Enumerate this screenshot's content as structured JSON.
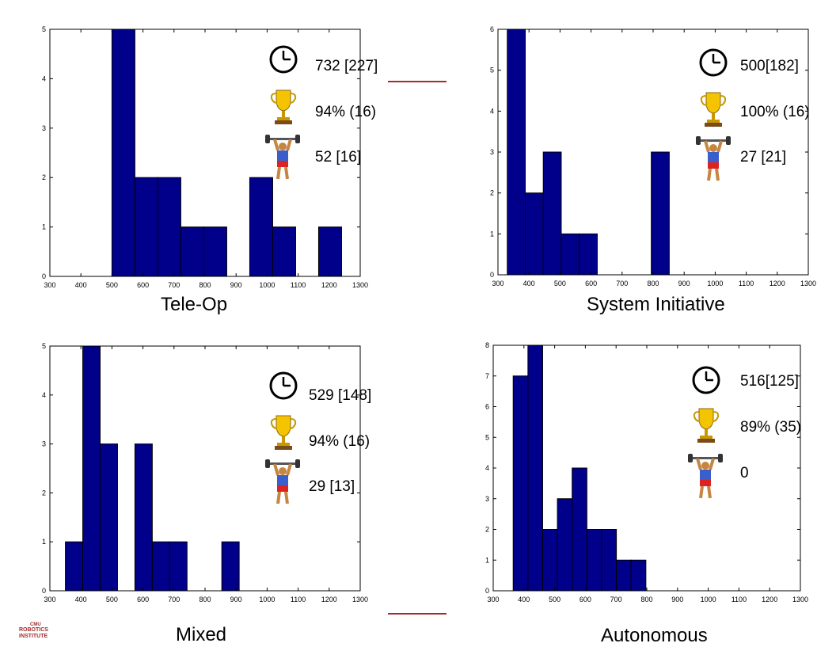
{
  "charts": [
    {
      "label": "Tele-Op",
      "stats": {
        "time": "732 [227]",
        "success": "94% (16)",
        "effort": "52 [16]"
      },
      "chart_data": {
        "type": "bar",
        "bin_width": 74,
        "bin_starts": [
          500,
          574,
          648,
          722,
          796,
          944,
          1018,
          1166
        ],
        "values": [
          5,
          2,
          2,
          1,
          1,
          2,
          1,
          1
        ],
        "xlim": [
          300,
          1300
        ],
        "xticks": [
          300,
          400,
          500,
          600,
          700,
          800,
          900,
          1000,
          1100,
          1200,
          1300
        ],
        "ylim": [
          0,
          5
        ],
        "yticks": [
          0,
          1,
          2,
          3,
          4,
          5
        ]
      }
    },
    {
      "label": "System Initiative",
      "stats": {
        "time": "500[182]",
        "success": "100% (16)",
        "effort": "27 [21]"
      },
      "chart_data": {
        "type": "bar",
        "bin_width": 58,
        "bin_starts": [
          330,
          388,
          446,
          504,
          562,
          794
        ],
        "values": [
          6,
          2,
          3,
          1,
          1,
          3
        ],
        "xlim": [
          300,
          1300
        ],
        "xticks": [
          300,
          400,
          500,
          600,
          700,
          800,
          900,
          1000,
          1100,
          1200,
          1300
        ],
        "ylim": [
          0,
          6
        ],
        "yticks": [
          0,
          1,
          2,
          3,
          4,
          5,
          6
        ]
      }
    },
    {
      "label": "Mixed",
      "stats": {
        "time": "529 [148]",
        "success": "94% (16)",
        "effort": "29 [13]"
      },
      "chart_data": {
        "type": "bar",
        "bin_width": 56,
        "bin_starts": [
          350,
          406,
          462,
          574,
          630,
          686,
          854
        ],
        "values": [
          1,
          5,
          3,
          3,
          1,
          1,
          1
        ],
        "xlim": [
          300,
          1300
        ],
        "xticks": [
          300,
          400,
          500,
          600,
          700,
          800,
          900,
          1000,
          1100,
          1200,
          1300
        ],
        "ylim": [
          0,
          5
        ],
        "yticks": [
          0,
          1,
          2,
          3,
          4,
          5
        ]
      }
    },
    {
      "label": "Autonomous",
      "stats": {
        "time": "516[125]",
        "success": "89% (35)",
        "effort": "0"
      },
      "chart_data": {
        "type": "bar",
        "bin_width": 48,
        "bin_starts": [
          365,
          413,
          461,
          509,
          557,
          605,
          653,
          701,
          749
        ],
        "values": [
          7,
          8,
          2,
          3,
          4,
          2,
          2,
          1,
          1
        ],
        "xlim": [
          300,
          1300
        ],
        "xticks": [
          300,
          400,
          500,
          600,
          700,
          800,
          900,
          1000,
          1100,
          1200,
          1300
        ],
        "ylim": [
          0,
          8
        ],
        "yticks": [
          0,
          1,
          2,
          3,
          4,
          5,
          6,
          7,
          8
        ]
      }
    }
  ],
  "colors": {
    "bar_fill": "#00008b",
    "bar_edge": "#000000",
    "accent_line": "#a52a2a"
  },
  "icons": {
    "time": "clock-icon",
    "success": "trophy-icon",
    "effort": "weightlifter-icon"
  },
  "logo": {
    "line1": "CMU",
    "line2": "ROBOTICS",
    "line3": "INSTITUTE"
  }
}
